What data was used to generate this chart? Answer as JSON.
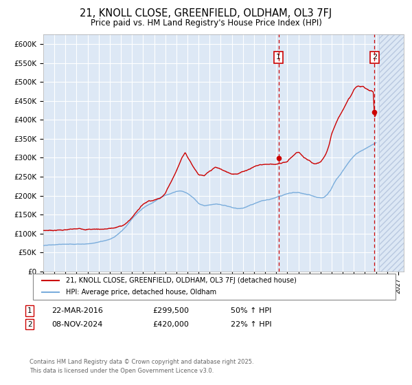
{
  "title": "21, KNOLL CLOSE, GREENFIELD, OLDHAM, OL3 7FJ",
  "subtitle": "Price paid vs. HM Land Registry's House Price Index (HPI)",
  "ylabel_ticks": [
    "£0",
    "£50K",
    "£100K",
    "£150K",
    "£200K",
    "£250K",
    "£300K",
    "£350K",
    "£400K",
    "£450K",
    "£500K",
    "£550K",
    "£600K"
  ],
  "ylim": [
    0,
    625000
  ],
  "xlim_start": 1995.0,
  "xlim_end": 2027.5,
  "bg_color": "#dde8f5",
  "grid_color": "#ffffff",
  "red_line_color": "#cc0000",
  "blue_line_color": "#7aaddc",
  "hatch_start": 2025.3,
  "marker1_x": 2016.22,
  "marker1_y": 299500,
  "marker2_x": 2024.86,
  "marker2_y": 420000,
  "legend_line1": "21, KNOLL CLOSE, GREENFIELD, OLDHAM, OL3 7FJ (detached house)",
  "legend_line2": "HPI: Average price, detached house, Oldham",
  "ann1_date": "22-MAR-2016",
  "ann1_price": "£299,500",
  "ann1_hpi": "50% ↑ HPI",
  "ann2_date": "08-NOV-2024",
  "ann2_price": "£420,000",
  "ann2_hpi": "22% ↑ HPI",
  "footer": "Contains HM Land Registry data © Crown copyright and database right 2025.\nThis data is licensed under the Open Government Licence v3.0."
}
